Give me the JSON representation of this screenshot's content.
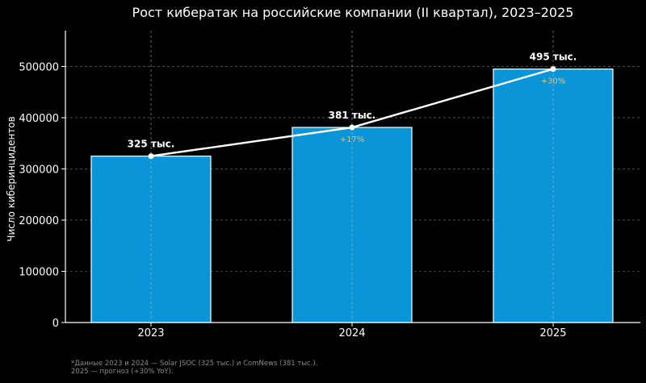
{
  "chart_data": {
    "type": "bar",
    "title": "Рост кибератак на российские компании (II квартал), 2023–2025",
    "xlabel": "",
    "ylabel": "Число киберинцидентов",
    "categories": [
      "2023",
      "2024",
      "2025"
    ],
    "values": [
      325000,
      381000,
      495000
    ],
    "bar_labels": [
      "325 тыс.",
      "381 тыс.",
      "495 тыс."
    ],
    "growth_labels": [
      "",
      "+17%",
      "+30%"
    ],
    "line_series": {
      "values": [
        325000,
        381000,
        495000
      ]
    },
    "ylim": [
      0,
      570000
    ],
    "yticks": [
      0,
      100000,
      200000,
      300000,
      400000,
      500000
    ],
    "grid": true,
    "colors": {
      "bar": "#0a95d9",
      "bar_edge": "#ffffff",
      "line": "#ffffff",
      "growth": "#e8c36a",
      "background": "#000000"
    }
  },
  "footnote": {
    "line1": "*Данные 2023 и 2024 — Solar JSOC (325 тыс.) и ComNews (381 тыс.).",
    "line2": "2025 — прогноз (+30% YoY)."
  }
}
